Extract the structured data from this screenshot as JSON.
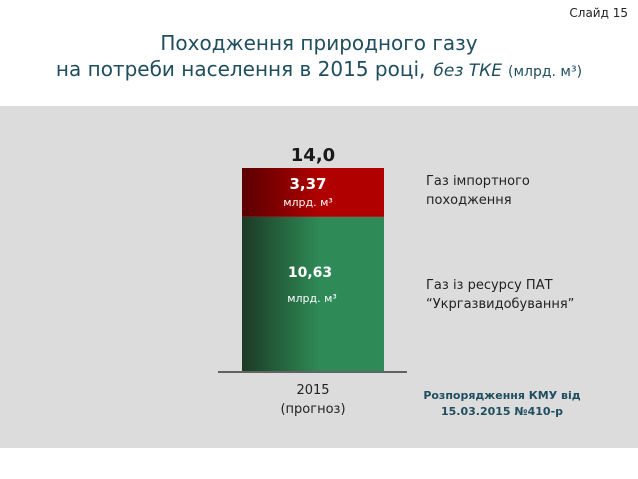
{
  "slide_label": "Слайд 15",
  "title": {
    "line1": "Походження природного газу",
    "line2_main": "на потреби населення в 2015 році,",
    "line2_em": "без ТКЕ",
    "line2_unit": "(млрд. м³)"
  },
  "colors": {
    "import": "#b00000",
    "import_dark": "#5a0000",
    "domestic": "#2e8b57",
    "domestic_dark": "#1c3a25",
    "panel": "#dcdcdc",
    "title": "#1f4e5f"
  },
  "chart_data": {
    "type": "bar",
    "stacked": true,
    "categories": [
      "2015 (прогноз)"
    ],
    "x_label_line1": "2015",
    "x_label_line2": "(прогноз)",
    "total_label": "14,0",
    "total": 14.0,
    "series": [
      {
        "name": "Газ із ресурсу ПАТ “Укргазвидобування”",
        "legend_line1": "Газ із ресурсу ПАТ",
        "legend_line2": "“Укргазвидобування”",
        "values": [
          10.63
        ],
        "value_label": "10,63",
        "unit_label": "млрд. м³",
        "color": "#2e8b57"
      },
      {
        "name": "Газ імпортного походження",
        "legend_line1": "Газ імпортного",
        "legend_line2": "походження",
        "values": [
          3.37
        ],
        "value_label": "3,37",
        "unit_label": "млрд. м³",
        "color": "#b00000"
      }
    ],
    "grid": false
  },
  "source_note": {
    "line1": "Розпорядження КМУ від",
    "line2": "15.03.2015 №410-р"
  }
}
